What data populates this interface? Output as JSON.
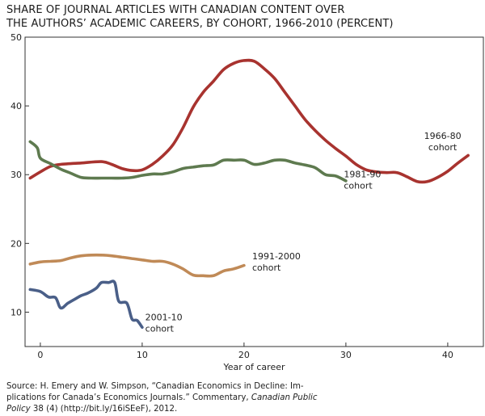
{
  "chart_data": {
    "type": "line",
    "title": "SHARE OF JOURNAL ARTICLES WITH CANADIAN CONTENT OVER",
    "subtitle": "THE AUTHORS’ ACADEMIC CAREERS, BY COHORT, 1966-2010 (PERCENT)",
    "xlabel": "Year of career",
    "ylabel": "",
    "xlim": [
      -1.5,
      43.5
    ],
    "ylim": [
      5,
      50
    ],
    "xticks": [
      0,
      10,
      20,
      30,
      40
    ],
    "yticks": [
      10,
      20,
      30,
      40,
      50
    ],
    "grid": false,
    "series": [
      {
        "name": "1966-80 cohort",
        "label_lines": [
          "1966-80",
          "cohort"
        ],
        "color": "#a8332f",
        "points": [
          [
            -1,
            29.5
          ],
          [
            0,
            30.4
          ],
          [
            1,
            31.2
          ],
          [
            2,
            31.5
          ],
          [
            4,
            31.7
          ],
          [
            6,
            31.9
          ],
          [
            7,
            31.5
          ],
          [
            8,
            30.9
          ],
          [
            9,
            30.6
          ],
          [
            10,
            30.7
          ],
          [
            11,
            31.5
          ],
          [
            12,
            32.7
          ],
          [
            13,
            34.3
          ],
          [
            14,
            36.8
          ],
          [
            15,
            39.8
          ],
          [
            16,
            42
          ],
          [
            17,
            43.6
          ],
          [
            18,
            45.3
          ],
          [
            19,
            46.2
          ],
          [
            20,
            46.6
          ],
          [
            21,
            46.5
          ],
          [
            22,
            45.4
          ],
          [
            23,
            44
          ],
          [
            24,
            42
          ],
          [
            25,
            40
          ],
          [
            26,
            38
          ],
          [
            27,
            36.4
          ],
          [
            28,
            35
          ],
          [
            29,
            33.8
          ],
          [
            30,
            32.7
          ],
          [
            31,
            31.5
          ],
          [
            32,
            30.7
          ],
          [
            33,
            30.4
          ],
          [
            34,
            30.3
          ],
          [
            35,
            30.3
          ],
          [
            36,
            29.7
          ],
          [
            37,
            29
          ],
          [
            38,
            29
          ],
          [
            39,
            29.6
          ],
          [
            40,
            30.5
          ],
          [
            41,
            31.7
          ],
          [
            42,
            32.8
          ]
        ]
      },
      {
        "name": "1981-90 cohort",
        "label_lines": [
          "1981-90",
          "cohort"
        ],
        "color": "#5e7a4f",
        "points": [
          [
            -1,
            34.8
          ],
          [
            -0.3,
            33.9
          ],
          [
            0,
            32.4
          ],
          [
            1,
            31.6
          ],
          [
            2,
            30.8
          ],
          [
            3,
            30.2
          ],
          [
            4,
            29.6
          ],
          [
            5,
            29.5
          ],
          [
            6,
            29.5
          ],
          [
            7,
            29.5
          ],
          [
            8,
            29.5
          ],
          [
            9,
            29.6
          ],
          [
            10,
            29.9
          ],
          [
            11,
            30.1
          ],
          [
            12,
            30.1
          ],
          [
            13,
            30.4
          ],
          [
            14,
            30.9
          ],
          [
            15,
            31.1
          ],
          [
            16,
            31.3
          ],
          [
            17,
            31.4
          ],
          [
            18,
            32.1
          ],
          [
            19,
            32.1
          ],
          [
            20,
            32.1
          ],
          [
            21,
            31.5
          ],
          [
            22,
            31.7
          ],
          [
            23,
            32.1
          ],
          [
            24,
            32.1
          ],
          [
            25,
            31.7
          ],
          [
            26,
            31.4
          ],
          [
            27,
            31
          ],
          [
            28,
            30
          ],
          [
            29,
            29.8
          ],
          [
            30,
            29.1
          ]
        ]
      },
      {
        "name": "1991-2000 cohort",
        "label_lines": [
          "1991-2000",
          "cohort"
        ],
        "color": "#c08a57",
        "points": [
          [
            -1,
            17
          ],
          [
            0,
            17.3
          ],
          [
            1,
            17.4
          ],
          [
            2,
            17.5
          ],
          [
            3,
            17.9
          ],
          [
            4,
            18.2
          ],
          [
            5,
            18.3
          ],
          [
            6,
            18.3
          ],
          [
            7,
            18.2
          ],
          [
            8,
            18
          ],
          [
            9,
            17.8
          ],
          [
            10,
            17.6
          ],
          [
            11,
            17.4
          ],
          [
            12,
            17.4
          ],
          [
            13,
            17
          ],
          [
            14,
            16.3
          ],
          [
            15,
            15.4
          ],
          [
            16,
            15.3
          ],
          [
            17,
            15.3
          ],
          [
            18,
            16
          ],
          [
            19,
            16.3
          ],
          [
            20,
            16.8
          ]
        ]
      },
      {
        "name": "2001-10 cohort",
        "label_lines": [
          "2001-10",
          "cohort"
        ],
        "color": "#4a5f88",
        "points": [
          [
            -1,
            13.3
          ],
          [
            0,
            13
          ],
          [
            0.8,
            12.2
          ],
          [
            1.5,
            12.1
          ],
          [
            2,
            10.6
          ],
          [
            2.7,
            11.3
          ],
          [
            3.4,
            11.9
          ],
          [
            4,
            12.4
          ],
          [
            4.7,
            12.8
          ],
          [
            5.5,
            13.5
          ],
          [
            6,
            14.3
          ],
          [
            6.7,
            14.3
          ],
          [
            7.3,
            14.3
          ],
          [
            7.7,
            11.6
          ],
          [
            8.5,
            11.3
          ],
          [
            9,
            9
          ],
          [
            9.5,
            8.8
          ],
          [
            10,
            7.8
          ]
        ]
      }
    ]
  },
  "source": {
    "line1": "Source: H. Emery and W. Simpson, “Canadian Economics in Decline: Im-",
    "line2": "plications for Canada’s Economics Journals.” Commentary,",
    "italic1": "Canadian Public",
    "italic2": "Policy",
    "line3": "38 (4) (http://bit.ly/16iSEeF), 2012."
  }
}
